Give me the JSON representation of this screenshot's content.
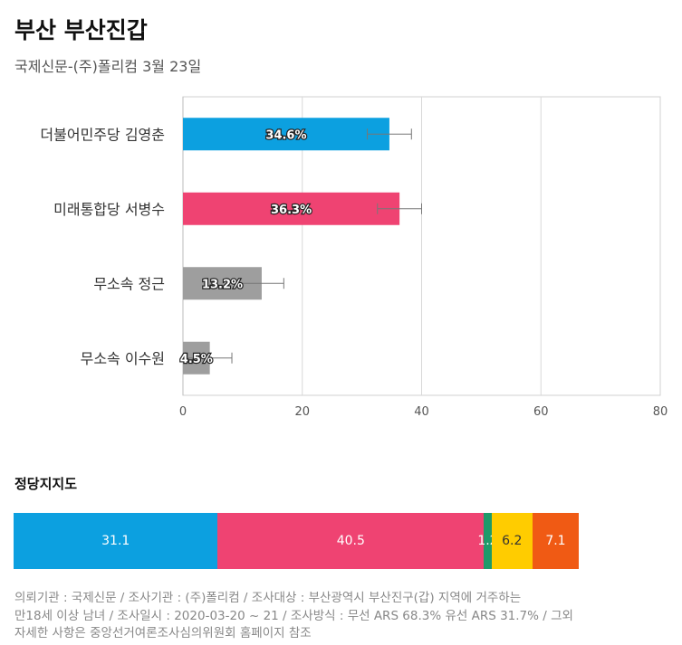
{
  "header": {
    "title": "부산 부산진갑",
    "subtitle": "국제신문-(주)폴리컴 3월 23일"
  },
  "chart_data": [
    {
      "type": "bar",
      "orientation": "horizontal",
      "categories": [
        "더불어민주당 김영춘",
        "미래통합당 서병수",
        "무소속 정근",
        "무소속 이수원"
      ],
      "values": [
        34.6,
        36.3,
        13.2,
        4.5
      ],
      "value_labels": [
        "34.6%",
        "36.3%",
        "13.2%",
        "4.5%"
      ],
      "error_margin": 3.7,
      "colors": [
        "#0ca0e0",
        "#ef4372",
        "#9e9e9e",
        "#9e9e9e"
      ],
      "xlim": [
        0,
        80
      ],
      "xticks": [
        0,
        20,
        40,
        60,
        80
      ],
      "grid": true
    },
    {
      "type": "stacked-bar",
      "title": "정당지지도",
      "segments": [
        {
          "value": 31.1,
          "label": "31.1",
          "color": "#0ca0e0"
        },
        {
          "value": 40.5,
          "label": "40.5",
          "color": "#ef4372"
        },
        {
          "value": 1.2,
          "label": "1.2",
          "color": "#1e9a6a"
        },
        {
          "value": 6.2,
          "label": "6.2",
          "color": "#ffcc00"
        },
        {
          "value": 7.1,
          "label": "7.1",
          "color": "#f05a14"
        },
        {
          "value": 13.9,
          "label": "",
          "color": "#ffffff"
        }
      ]
    }
  ],
  "footer": {
    "lines": [
      "의뢰기관 : 국제신문 / 조사기관 : (주)폴리컴 / 조사대상 : 부산광역시 부산진구(갑) 지역에 거주하는",
      "만18세 이상 남녀 / 조사일시 : 2020-03-20 ~ 21 / 조사방식 : 무선 ARS 68.3% 유선 ARS 31.7% / 그외",
      "자세한 사항은 중앙선거여론조사심의위원회 홈페이지 참조"
    ]
  }
}
